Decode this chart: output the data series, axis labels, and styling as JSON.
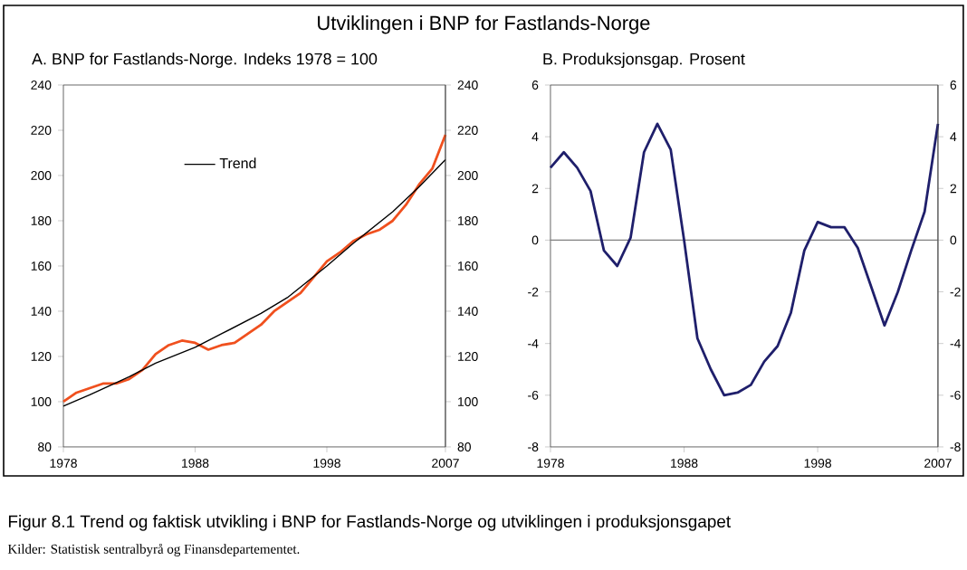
{
  "chart_data": [
    {
      "type": "other",
      "title": "Utviklingen i BNP for Fastlands-Norge",
      "annotations": [
        "Figur 8.1 Trend og faktisk utvikling i BNP for Fastlands-Norge og utviklingen i produksjonsgapet",
        "Kilder: Statistisk sentralbyrå og Finansdepartementet."
      ]
    },
    {
      "type": "line",
      "title": "A. BNP for Fastlands-Norge. Indeks 1978 = 100",
      "xlim": [
        1978,
        2007
      ],
      "xticks": [
        1978,
        1988,
        1998,
        2007
      ],
      "ylim": [
        80,
        240
      ],
      "yticks": [
        80,
        100,
        120,
        140,
        160,
        180,
        200,
        220,
        240
      ],
      "y2lim": [
        80,
        240
      ],
      "y2ticks": [
        80,
        100,
        120,
        140,
        160,
        180,
        200,
        220,
        240
      ],
      "legend": "top left",
      "marker": "none",
      "line_style": "solid",
      "series": [
        {
          "color": "#f0501e",
          "x": [
            1978,
            1979,
            1980,
            1981,
            1982,
            1983,
            1984,
            1985,
            1986,
            1987,
            1988,
            1989,
            1990,
            1991,
            1992,
            1993,
            1994,
            1995,
            1996,
            1997,
            1998,
            1999,
            2000,
            2001,
            2002,
            2003,
            2004,
            2005,
            2006,
            2007
          ],
          "values": [
            100,
            104,
            106,
            108,
            108,
            110,
            114,
            121,
            125,
            127,
            126,
            123,
            125,
            126,
            130,
            134,
            140,
            144,
            148,
            155,
            162,
            166,
            171,
            174,
            176,
            180,
            187,
            196,
            203,
            218
          ]
        },
        {
          "name": "Trend",
          "color": "#000000",
          "x": [
            1978,
            1980,
            1983,
            1985,
            1988,
            1990,
            1993,
            1995,
            1998,
            2000,
            2003,
            2005,
            2007
          ],
          "values": [
            98,
            103,
            111,
            117,
            124,
            130,
            139,
            146,
            160,
            170,
            184,
            195,
            207
          ]
        }
      ]
    },
    {
      "type": "line",
      "title": "B. Produksjonsgap. Prosent",
      "xlim": [
        1978,
        2007
      ],
      "xticks": [
        1978,
        1988,
        1998,
        2007
      ],
      "ylim": [
        -8,
        6
      ],
      "yticks": [
        -8,
        -6,
        -4,
        -2,
        0,
        2,
        4,
        6
      ],
      "y2lim": [
        -8,
        6
      ],
      "y2ticks": [
        -8,
        -6,
        -4,
        -2,
        0,
        2,
        4,
        6
      ],
      "marker": "none",
      "line_style": "solid",
      "ref_lines": [
        {
          "axis": "y",
          "value": 0,
          "color": "#808080"
        }
      ],
      "series": [
        {
          "color": "#1f1f6b",
          "x": [
            1978,
            1979,
            1980,
            1981,
            1982,
            1983,
            1984,
            1985,
            1986,
            1987,
            1988,
            1989,
            1990,
            1991,
            1992,
            1993,
            1994,
            1995,
            1996,
            1997,
            1998,
            1999,
            2000,
            2001,
            2002,
            2003,
            2004,
            2005,
            2006,
            2007
          ],
          "values": [
            2.8,
            3.4,
            2.8,
            1.9,
            -0.4,
            -1.0,
            0.1,
            3.4,
            4.5,
            3.5,
            0,
            -3.8,
            -5.0,
            -6.0,
            -5.9,
            -5.6,
            -4.7,
            -4.1,
            -2.8,
            -0.4,
            0.7,
            0.5,
            0.5,
            -0.3,
            -1.8,
            -3.3,
            -2.0,
            -0.4,
            1.1,
            4.5
          ]
        }
      ]
    }
  ]
}
